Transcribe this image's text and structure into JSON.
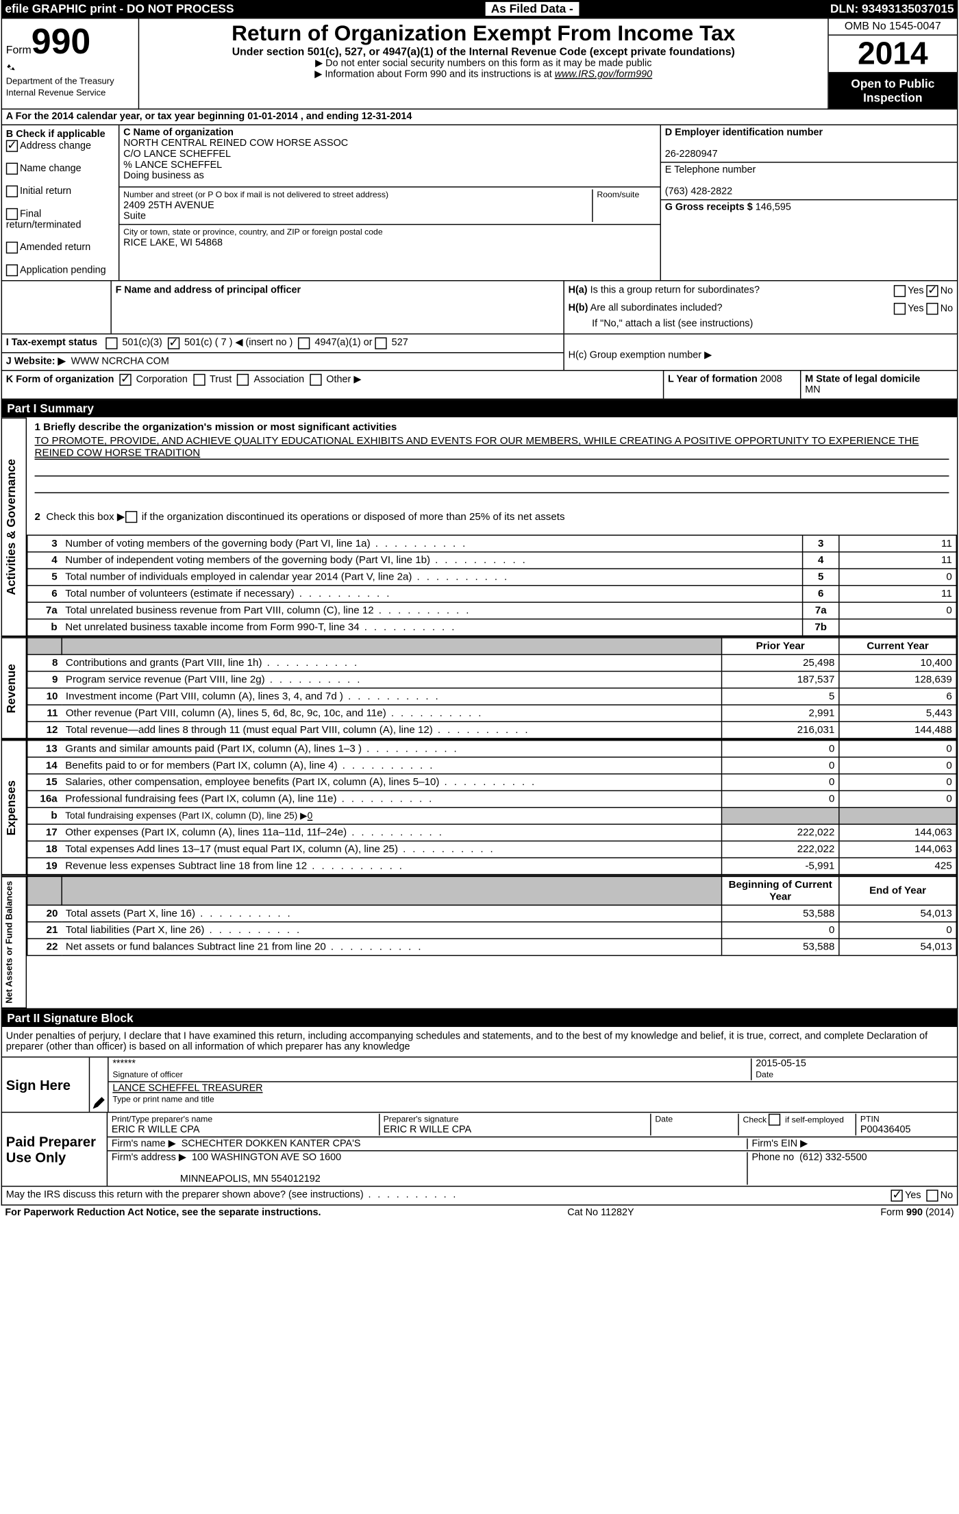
{
  "top_strip": {
    "left": "efile GRAPHIC print - DO NOT PROCESS",
    "mid": "As Filed Data -",
    "right": "DLN: 93493135037015"
  },
  "header": {
    "form_label": "Form",
    "form_number": "990",
    "dept": "Department of the Treasury",
    "irs": "Internal Revenue Service",
    "title": "Return of Organization Exempt From Income Tax",
    "subtitle": "Under section 501(c), 527, or 4947(a)(1) of the Internal Revenue Code (except private foundations)",
    "note1": "▶ Do not enter social security numbers on this form as it may be made public",
    "note2_pre": "▶ Information about Form 990 and its instructions is at ",
    "note2_link": "www.IRS.gov/form990",
    "omb": "OMB No 1545-0047",
    "year": "2014",
    "open_public": "Open to Public Inspection"
  },
  "A": {
    "prefix": "A  For the 2014 calendar year, or tax year beginning ",
    "begin": "01-01-2014",
    "mid": " , and ending ",
    "end": "12-31-2014"
  },
  "B": {
    "label": "B  Check if applicable",
    "address_change": "Address change",
    "name_change": "Name change",
    "initial_return": "Initial return",
    "final_return": "Final return/terminated",
    "amended_return": "Amended return",
    "application_pending": "Application pending"
  },
  "C": {
    "name_label": "C Name of organization",
    "name1": "NORTH CENTRAL REINED COW HORSE ASSOC",
    "name2": "C/O LANCE SCHEFFEL",
    "name3": "% LANCE SCHEFFEL",
    "dba_label": "Doing business as",
    "addr_label": "Number and street (or P O  box if mail is not delivered to street address)",
    "room_label": "Room/suite",
    "addr1": "2409 25TH AVENUE",
    "addr2": "Suite",
    "city_label": "City or town, state or province, country, and ZIP or foreign postal code",
    "city": "RICE LAKE, WI  54868",
    "F_label": "F  Name and address of principal officer"
  },
  "D": {
    "label": "D Employer identification number",
    "ein": "26-2280947"
  },
  "E": {
    "label": "E Telephone number",
    "phone": "(763) 428-2822"
  },
  "G": {
    "label": "G Gross receipts $",
    "value": "146,595"
  },
  "H": {
    "a_label": "H(a)  Is this a group return for subordinates?",
    "b_label": "H(b)  Are all subordinates included?",
    "no_note": "If \"No,\" attach a list  (see instructions)",
    "c_label": "H(c)   Group exemption number ▶",
    "yes": "Yes",
    "no": "No"
  },
  "I": {
    "label": "I   Tax-exempt status",
    "opt1": "501(c)(3)",
    "opt2": "501(c) ( 7 ) ◀ (insert no )",
    "opt3": "4947(a)(1) or",
    "opt4": "527"
  },
  "J": {
    "label": "J  Website: ▶",
    "value": "WWW NCRCHA COM"
  },
  "K": {
    "label": "K Form of organization",
    "corp": "Corporation",
    "trust": "Trust",
    "assoc": "Association",
    "other": "Other ▶"
  },
  "L": {
    "label": "L Year of formation",
    "value": "2008"
  },
  "M": {
    "label": "M State of legal domicile",
    "value": "MN"
  },
  "part1": {
    "header": "Part I    Summary",
    "line1_label": "1   Briefly describe the organization's mission or most significant activities",
    "line1_text": "TO PROMOTE, PROVIDE, AND ACHIEVE QUALITY EDUCATIONAL EXHIBITS AND EVENTS FOR OUR MEMBERS, WHILE CREATING A POSITIVE OPPORTUNITY TO EXPERIENCE THE REINED COW HORSE TRADITION",
    "line2": "2   Check this box ▶        if the organization discontinued its operations or disposed of more than 25% of its net assets",
    "rows_gov": [
      {
        "n": "3",
        "label": "Number of voting members of the governing body (Part VI, line 1a)",
        "box": "3",
        "val": "11"
      },
      {
        "n": "4",
        "label": "Number of independent voting members of the governing body (Part VI, line 1b)",
        "box": "4",
        "val": "11"
      },
      {
        "n": "5",
        "label": "Total number of individuals employed in calendar year 2014 (Part V, line 2a)",
        "box": "5",
        "val": "0"
      },
      {
        "n": "6",
        "label": "Total number of volunteers (estimate if necessary)",
        "box": "6",
        "val": "11"
      },
      {
        "n": "7a",
        "label": "Total unrelated business revenue from Part VIII, column (C), line 12",
        "box": "7a",
        "val": "0"
      },
      {
        "n": "b",
        "label": "Net unrelated business taxable income from Form 990-T, line 34",
        "box": "7b",
        "val": ""
      }
    ],
    "prior_year": "Prior Year",
    "current_year": "Current Year",
    "rows_rev": [
      {
        "n": "8",
        "label": "Contributions and grants (Part VIII, line 1h)",
        "py": "25,498",
        "cy": "10,400"
      },
      {
        "n": "9",
        "label": "Program service revenue (Part VIII, line 2g)",
        "py": "187,537",
        "cy": "128,639"
      },
      {
        "n": "10",
        "label": "Investment income (Part VIII, column (A), lines 3, 4, and 7d )",
        "py": "5",
        "cy": "6"
      },
      {
        "n": "11",
        "label": "Other revenue (Part VIII, column (A), lines 5, 6d, 8c, 9c, 10c, and 11e)",
        "py": "2,991",
        "cy": "5,443"
      },
      {
        "n": "12",
        "label": "Total revenue—add lines 8 through 11 (must equal Part VIII, column (A), line 12)",
        "py": "216,031",
        "cy": "144,488"
      }
    ],
    "rows_exp": [
      {
        "n": "13",
        "label": "Grants and similar amounts paid (Part IX, column (A), lines 1–3 )",
        "py": "0",
        "cy": "0"
      },
      {
        "n": "14",
        "label": "Benefits paid to or for members (Part IX, column (A), line 4)",
        "py": "0",
        "cy": "0"
      },
      {
        "n": "15",
        "label": "Salaries, other compensation, employee benefits (Part IX, column (A), lines 5–10)",
        "py": "0",
        "cy": "0"
      },
      {
        "n": "16a",
        "label": "Professional fundraising fees (Part IX, column (A), line 11e)",
        "py": "0",
        "cy": "0"
      },
      {
        "n": "b",
        "label": "Total fundraising expenses (Part IX, column (D), line 25) ▶",
        "py": "",
        "cy": "",
        "shaded": true,
        "inline": "0"
      },
      {
        "n": "17",
        "label": "Other expenses (Part IX, column (A), lines 11a–11d, 11f–24e)",
        "py": "222,022",
        "cy": "144,063"
      },
      {
        "n": "18",
        "label": "Total expenses  Add lines 13–17 (must equal Part IX, column (A), line 25)",
        "py": "222,022",
        "cy": "144,063"
      },
      {
        "n": "19",
        "label": "Revenue less expenses  Subtract line 18 from line 12",
        "py": "-5,991",
        "cy": "425"
      }
    ],
    "begin_year": "Beginning of Current Year",
    "end_year": "End of Year",
    "rows_net": [
      {
        "n": "20",
        "label": "Total assets (Part X, line 16)",
        "py": "53,588",
        "cy": "54,013"
      },
      {
        "n": "21",
        "label": "Total liabilities (Part X, line 26)",
        "py": "0",
        "cy": "0"
      },
      {
        "n": "22",
        "label": "Net assets or fund balances  Subtract line 21 from line 20",
        "py": "53,588",
        "cy": "54,013"
      }
    ],
    "vert_gov": "Activities & Governance",
    "vert_rev": "Revenue",
    "vert_exp": "Expenses",
    "vert_net": "Net Assets or Fund Balances"
  },
  "part2": {
    "header": "Part II    Signature Block",
    "declaration": "Under penalties of perjury, I declare that I have examined this return, including accompanying schedules and statements, and to the best of my knowledge and belief, it is true, correct, and complete  Declaration of preparer (other than officer) is based on all information of which preparer has any knowledge",
    "sign_here": "Sign Here",
    "sig_stars": "******",
    "sig_officer": "Signature of officer",
    "sig_date": "2015-05-15",
    "date_label": "Date",
    "officer_name": "LANCE SCHEFFEL TREASURER",
    "type_name_label": "Type or print name and title",
    "paid_preparer": "Paid Preparer Use Only",
    "preparer_name_label": "Print/Type preparer's name",
    "preparer_name": "ERIC R WILLE CPA",
    "preparer_sig_label": "Preparer's signature",
    "preparer_sig": "ERIC R WILLE CPA",
    "check_if": "Check        if self-employed",
    "ptin_label": "PTIN",
    "ptin": "P00436405",
    "firm_name_label": "Firm's name      ▶",
    "firm_name": "SCHECHTER DOKKEN KANTER CPA'S",
    "firm_ein_label": "Firm's EIN ▶",
    "firm_addr_label": "Firm's address ▶",
    "firm_addr": "100 WASHINGTON AVE SO 1600",
    "firm_city": "MINNEAPOLIS, MN  554012192",
    "firm_phone_label": "Phone no",
    "firm_phone": "(612) 332-5500",
    "discuss": "May the IRS discuss this return with the preparer shown above? (see instructions)",
    "yes": "Yes",
    "no": "No"
  },
  "footer": {
    "left": "For Paperwork Reduction Act Notice, see the separate instructions.",
    "mid": "Cat No  11282Y",
    "right": "Form 990 (2014)"
  }
}
